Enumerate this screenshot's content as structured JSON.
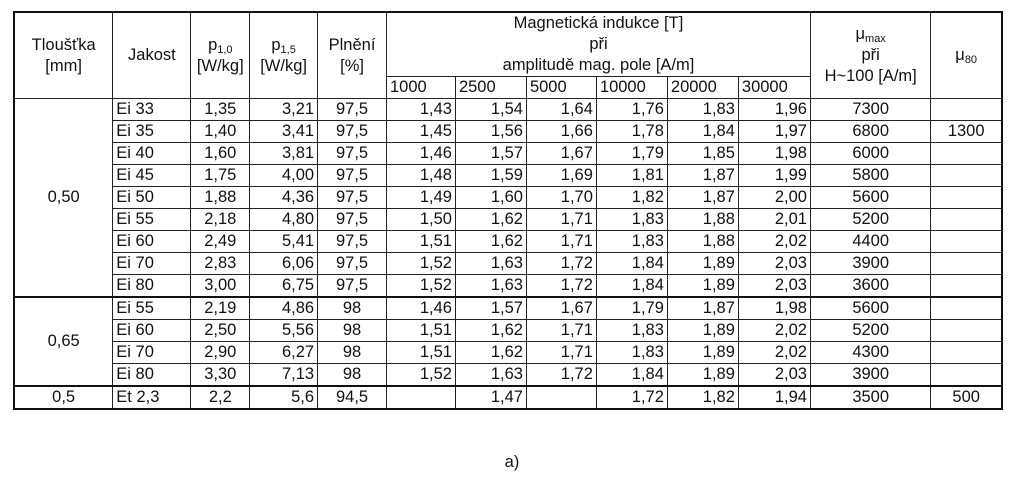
{
  "header": {
    "thickness": [
      "Tloušťka",
      "[mm]"
    ],
    "grade": "Jakost",
    "p10": {
      "base": "p",
      "sub": "1,0",
      "unit": "[W/kg]"
    },
    "p15": {
      "base": "p",
      "sub": "1,5",
      "unit": "[W/kg]"
    },
    "fill": [
      "Plnění",
      "[%]"
    ],
    "induction": [
      "Magnetická indukce [T]",
      "při",
      "amplitudě mag. pole [A/m]"
    ],
    "fields": [
      "1000",
      "2500",
      "5000",
      "10000",
      "20000",
      "30000"
    ],
    "mumax": {
      "base": "μ",
      "sub": "max",
      "line2": "při",
      "line3": "H~100 [A/m]"
    },
    "mu80": {
      "base": "μ",
      "sub": "80"
    }
  },
  "groups": [
    {
      "thickness": "0,50",
      "rows": [
        [
          "Ei 33",
          "1,35",
          "3,21",
          "97,5",
          "1,43",
          "1,54",
          "1,64",
          "1,76",
          "1,83",
          "1,96",
          "7300",
          ""
        ],
        [
          "Ei 35",
          "1,40",
          "3,41",
          "97,5",
          "1,45",
          "1,56",
          "1,66",
          "1,78",
          "1,84",
          "1,97",
          "6800",
          "1300"
        ],
        [
          "Ei 40",
          "1,60",
          "3,81",
          "97,5",
          "1,46",
          "1,57",
          "1,67",
          "1,79",
          "1,85",
          "1,98",
          "6000",
          ""
        ],
        [
          "Ei 45",
          "1,75",
          "4,00",
          "97,5",
          "1,48",
          "1,59",
          "1,69",
          "1,81",
          "1,87",
          "1,99",
          "5800",
          ""
        ],
        [
          "Ei 50",
          "1,88",
          "4,36",
          "97,5",
          "1,49",
          "1,60",
          "1,70",
          "1,82",
          "1,87",
          "2,00",
          "5600",
          ""
        ],
        [
          "Ei 55",
          "2,18",
          "4,80",
          "97,5",
          "1,50",
          "1,62",
          "1,71",
          "1,83",
          "1,88",
          "2,01",
          "5200",
          ""
        ],
        [
          "Ei 60",
          "2,49",
          "5,41",
          "97,5",
          "1,51",
          "1,62",
          "1,71",
          "1,83",
          "1,88",
          "2,02",
          "4400",
          ""
        ],
        [
          "Ei 70",
          "2,83",
          "6,06",
          "97,5",
          "1,52",
          "1,63",
          "1,72",
          "1,84",
          "1,89",
          "2,03",
          "3900",
          ""
        ],
        [
          "Ei 80",
          "3,00",
          "6,75",
          "97,5",
          "1,52",
          "1,63",
          "1,72",
          "1,84",
          "1,89",
          "2,03",
          "3600",
          ""
        ]
      ]
    },
    {
      "thickness": "0,65",
      "rows": [
        [
          "Ei 55",
          "2,19",
          "4,86",
          "98",
          "1,46",
          "1,57",
          "1,67",
          "1,79",
          "1,87",
          "1,98",
          "5600",
          ""
        ],
        [
          "Ei 60",
          "2,50",
          "5,56",
          "98",
          "1,51",
          "1,62",
          "1,71",
          "1,83",
          "1,89",
          "2,02",
          "5200",
          ""
        ],
        [
          "Ei 70",
          "2,90",
          "6,27",
          "98",
          "1,51",
          "1,62",
          "1,71",
          "1,83",
          "1,89",
          "2,02",
          "4300",
          ""
        ],
        [
          "Ei 80",
          "3,30",
          "7,13",
          "98",
          "1,52",
          "1,63",
          "1,72",
          "1,84",
          "1,89",
          "2,03",
          "3900",
          ""
        ]
      ]
    },
    {
      "thickness": "0,5",
      "rows": [
        [
          "Et 2,3",
          "2,2",
          "5,6",
          "94,5",
          "",
          "1,47",
          "",
          "1,72",
          "1,82",
          "1,94",
          "3500",
          "500"
        ]
      ]
    }
  ],
  "caption": "a)"
}
